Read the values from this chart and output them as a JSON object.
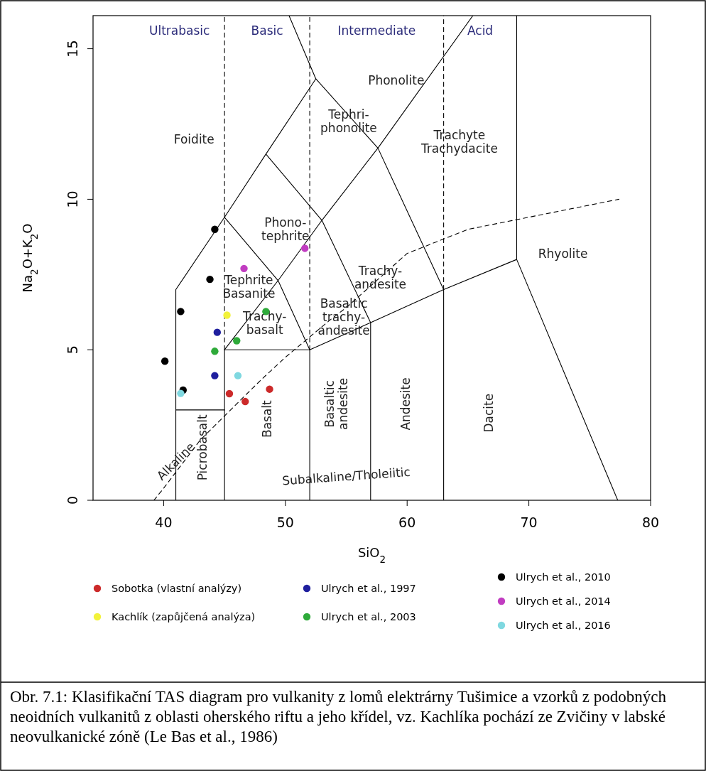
{
  "chart_data": {
    "type": "scatter",
    "xlabel": "SiO$_{2}$",
    "ylabel": "Na$_{2}$O+K$_{2}$O",
    "xlim": [
      34.2,
      80
    ],
    "ylim": [
      0,
      16.1
    ],
    "xticks": [
      40,
      50,
      60,
      70,
      80
    ],
    "yticks": [
      0,
      5,
      10,
      15
    ],
    "legend": "bottom",
    "series": [
      {
        "name": "Sobotka (vlastní analýzy)",
        "color": "#cc2a2a",
        "marker": "circle",
        "x": [
          45.4,
          46.7,
          48.7
        ],
        "values": [
          3.54,
          3.28,
          3.69
        ]
      },
      {
        "name": "Kachlík (zapůjčená analýza)",
        "color": "#f2f23a",
        "marker": "circle",
        "x": [
          45.2
        ],
        "values": [
          6.15
        ]
      },
      {
        "name": "Ulrych et al., 1997",
        "color": "#1f1f9e",
        "marker": "circle",
        "x": [
          44.4,
          44.2
        ],
        "values": [
          5.58,
          4.14
        ]
      },
      {
        "name": "Ulrych et al., 2003",
        "color": "#2eaa3a",
        "marker": "circle",
        "x": [
          48.4,
          46.0,
          44.2
        ],
        "values": [
          6.27,
          5.3,
          4.95
        ]
      },
      {
        "name": "Ulrych et al., 2010",
        "color": "#000000",
        "marker": "circle",
        "x": [
          44.2,
          43.8,
          41.4,
          40.1,
          41.6
        ],
        "values": [
          9.0,
          7.34,
          6.27,
          4.62,
          3.66
        ]
      },
      {
        "name": "Ulrych et al., 2014",
        "color": "#c13cc1",
        "marker": "circle",
        "x": [
          46.6,
          51.6
        ],
        "values": [
          7.7,
          8.37
        ]
      },
      {
        "name": "Ulrych et al., 2016",
        "color": "#7fd8e0",
        "marker": "circle",
        "x": [
          46.1,
          41.4
        ],
        "values": [
          4.14,
          3.55
        ]
      },
      {
        "type": "line",
        "color": "#000000",
        "line_style": "solid",
        "marker": "none",
        "x": [
          41,
          41,
          45,
          48.4,
          52.5,
          57.6,
          63,
          63
        ],
        "values": [
          0,
          7,
          9.4,
          11.5,
          14,
          11.7,
          7,
          0
        ]
      },
      {
        "type": "line",
        "color": "#000000",
        "line_style": "solid",
        "marker": "none",
        "x": [
          52.5,
          50.3
        ],
        "values": [
          14,
          16.1
        ]
      },
      {
        "type": "line",
        "color": "#000000",
        "line_style": "solid",
        "marker": "none",
        "x": [
          45,
          49.4,
          53,
          57.6,
          65.4
        ],
        "values": [
          5,
          7.3,
          9.3,
          11.7,
          16.1
        ]
      },
      {
        "type": "line",
        "color": "#000000",
        "line_style": "solid",
        "marker": "none",
        "x": [
          45,
          49.4,
          52
        ],
        "values": [
          9.4,
          7.3,
          5
        ]
      },
      {
        "type": "line",
        "color": "#000000",
        "line_style": "solid",
        "marker": "none",
        "x": [
          48.4,
          53,
          57,
          57
        ],
        "values": [
          11.5,
          9.3,
          5.9,
          0
        ]
      },
      {
        "type": "line",
        "color": "#000000",
        "line_style": "solid",
        "marker": "none",
        "x": [
          41,
          45
        ],
        "values": [
          3,
          3
        ]
      },
      {
        "type": "line",
        "color": "#000000",
        "line_style": "solid",
        "marker": "none",
        "x": [
          45,
          45,
          52,
          52
        ],
        "values": [
          0,
          5,
          5,
          0
        ]
      },
      {
        "type": "line",
        "color": "#000000",
        "line_style": "solid",
        "marker": "none",
        "x": [
          52,
          57,
          63,
          69,
          77.3
        ],
        "values": [
          5,
          5.9,
          7,
          8,
          0
        ]
      },
      {
        "type": "line",
        "color": "#000000",
        "line_style": "solid",
        "marker": "none",
        "x": [
          69,
          69
        ],
        "values": [
          8,
          16.1
        ]
      },
      {
        "type": "line",
        "color": "#000000",
        "line_style": "dashed",
        "marker": "none",
        "x": [
          45,
          45
        ],
        "values": [
          5,
          16.1
        ]
      },
      {
        "type": "line",
        "color": "#000000",
        "line_style": "dashed",
        "marker": "none",
        "x": [
          52,
          52
        ],
        "values": [
          5,
          16.1
        ]
      },
      {
        "type": "line",
        "color": "#000000",
        "line_style": "dashed",
        "marker": "none",
        "x": [
          63,
          63
        ],
        "values": [
          7,
          16.1
        ]
      },
      {
        "type": "line",
        "color": "#000000",
        "line_style": "dashed",
        "marker": "none",
        "x": [
          39.2,
          40,
          43,
          45,
          48,
          50,
          53.7,
          55,
          60,
          65,
          77.4
        ],
        "values": [
          0,
          0.4,
          2,
          2.8,
          4,
          4.75,
          6,
          6.4,
          8.2,
          9,
          10
        ]
      }
    ],
    "annotations": [
      "Ultrabasic",
      "Basic",
      "Intermediate",
      "Acid",
      "Phonolite",
      "Foidite",
      "Tephri-\nphonolite",
      "Trachyte\nTrachydacite",
      "Phono-\ntephrite",
      "Trachy-\nandesite",
      "Rhyolite",
      "Tephrite\nBasanite",
      "Basaltic\ntrachy-\nandesite",
      "Trachy-\nbasalt",
      "Basalt",
      "Basaltic\nandesite",
      "Andesite",
      "Dacite",
      "Picrobasalt",
      "Alkaline",
      "Subalkaline/Tholeiitic",
      "Obr. 7.1:  Klasifikační TAS diagram  pro vulkanity z lomů elektrárny Tušimice a vzorků z podobných neoidních vulkanitů z oblasti oherského riftu a jeho křídel, vz. Kachlíka pochází ze Zvičiny v labské neovulkanické zóně (Le Bas et al., 1986)"
    ]
  }
}
